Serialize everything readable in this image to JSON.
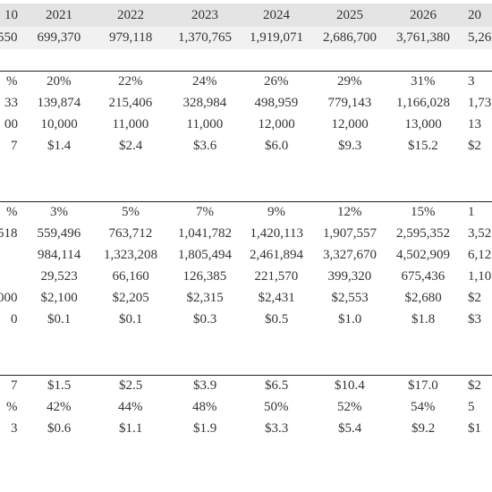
{
  "header": [
    "10",
    "2021",
    "2022",
    "2023",
    "2024",
    "2025",
    "2026",
    "20"
  ],
  "sections": [
    {
      "rows": [
        [
          "550",
          "699,370",
          "979,118",
          "1,370,765",
          "1,919,071",
          "2,686,700",
          "3,761,380",
          "5,26"
        ]
      ]
    },
    {
      "rows": [
        [
          "%",
          "20%",
          "22%",
          "24%",
          "26%",
          "29%",
          "31%",
          "3"
        ],
        [
          "33",
          "139,874",
          "215,406",
          "328,984",
          "498,959",
          "779,143",
          "1,166,028",
          "1,73"
        ],
        [
          "00",
          "10,000",
          "11,000",
          "11,000",
          "12,000",
          "12,000",
          "13,000",
          "13"
        ],
        [
          "7",
          "$1.4",
          "$2.4",
          "$3.6",
          "$6.0",
          "$9.3",
          "$15.2",
          "$2"
        ]
      ]
    },
    {
      "rows": [
        [
          "%",
          "3%",
          "5%",
          "7%",
          "9%",
          "12%",
          "15%",
          "1"
        ],
        [
          "518",
          "559,496",
          "763,712",
          "1,041,782",
          "1,420,113",
          "1,907,557",
          "2,595,352",
          "3,52"
        ],
        [
          null,
          "984,114",
          "1,323,208",
          "1,805,494",
          "2,461,894",
          "3,327,670",
          "4,502,909",
          "6,12"
        ],
        [
          null,
          "29,523",
          "66,160",
          "126,385",
          "221,570",
          "399,320",
          "675,436",
          "1,10"
        ],
        [
          "000",
          "$2,100",
          "$2,205",
          "$2,315",
          "$2,431",
          "$2,553",
          "$2,680",
          "$2"
        ],
        [
          "0",
          "$0.1",
          "$0.1",
          "$0.3",
          "$0.5",
          "$1.0",
          "$1.8",
          "$3"
        ]
      ]
    },
    {
      "rows": [
        [
          "7",
          "$1.5",
          "$2.5",
          "$3.9",
          "$6.5",
          "$10.4",
          "$17.0",
          "$2"
        ],
        [
          "%",
          "42%",
          "44%",
          "48%",
          "50%",
          "52%",
          "54%",
          "5"
        ],
        [
          "3",
          "$0.6",
          "$1.1",
          "$1.9",
          "$3.3",
          "$5.4",
          "$9.2",
          "$1"
        ]
      ]
    }
  ]
}
